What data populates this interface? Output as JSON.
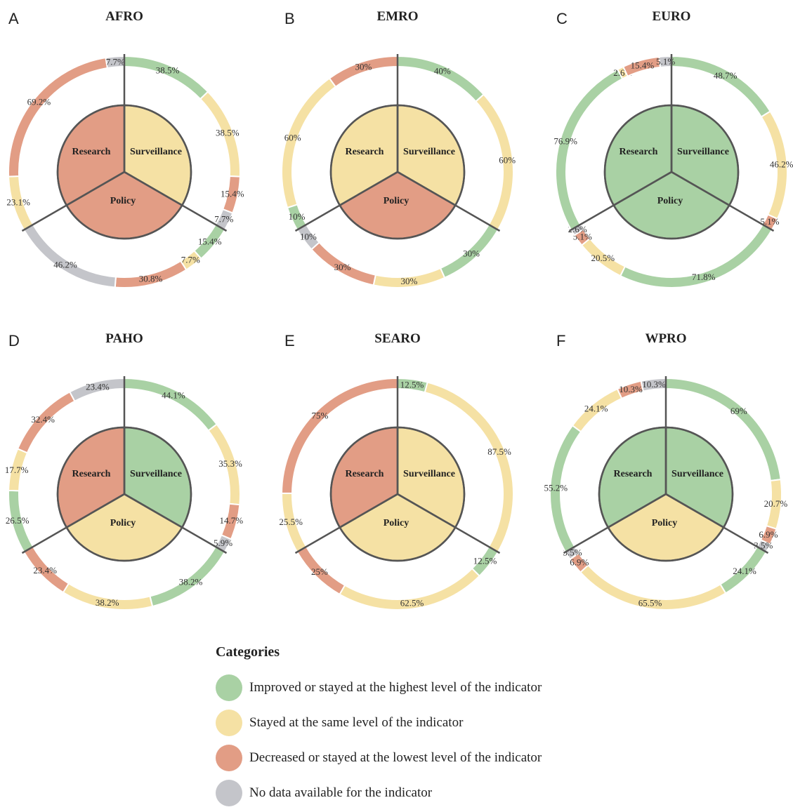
{
  "colors": {
    "improved": "#a9d1a4",
    "same": "#f5e1a4",
    "decreased": "#e29d85",
    "nodata": "#c4c5ca"
  },
  "legend": {
    "title": "Categories",
    "items": [
      {
        "key": "improved",
        "label": "Improved or stayed at the highest level of the indicator"
      },
      {
        "key": "same",
        "label": "Stayed at the same level of the indicator"
      },
      {
        "key": "decreased",
        "label": "Decreased or stayed at the lowest level of the indicator"
      },
      {
        "key": "nodata",
        "label": "No data available for the indicator"
      }
    ]
  },
  "chart_data": [
    {
      "type": "donut",
      "panel": "A",
      "title": "AFRO",
      "sections": [
        "Surveillance",
        "Policy",
        "Research"
      ],
      "inner": {
        "Surveillance": "same",
        "Policy": "decreased",
        "Research": "decreased"
      },
      "outer": {
        "Surveillance": [
          {
            "cat": "improved",
            "value": 38.5,
            "label": "38.5%"
          },
          {
            "cat": "same",
            "value": 38.5,
            "label": "38.5%"
          },
          {
            "cat": "decreased",
            "value": 15.4,
            "label": "15.4%"
          },
          {
            "cat": "nodata",
            "value": 7.7,
            "label": "7.7%"
          }
        ],
        "Policy": [
          {
            "cat": "improved",
            "value": 15.4,
            "label": "15.4%"
          },
          {
            "cat": "same",
            "value": 7.7,
            "label": "7.7%"
          },
          {
            "cat": "decreased",
            "value": 30.8,
            "label": "30.8%"
          },
          {
            "cat": "nodata",
            "value": 46.2,
            "label": "46.2%"
          }
        ],
        "Research": [
          {
            "cat": "same",
            "value": 23.1,
            "label": "23.1%"
          },
          {
            "cat": "decreased",
            "value": 69.2,
            "label": "69.2%"
          },
          {
            "cat": "nodata",
            "value": 7.7,
            "label": "7.7%"
          }
        ]
      }
    },
    {
      "type": "donut",
      "panel": "B",
      "title": "EMRO",
      "sections": [
        "Surveillance",
        "Policy",
        "Research"
      ],
      "inner": {
        "Surveillance": "same",
        "Policy": "decreased",
        "Research": "same"
      },
      "outer": {
        "Surveillance": [
          {
            "cat": "improved",
            "value": 40,
            "label": "40%"
          },
          {
            "cat": "same",
            "value": 60,
            "label": "60%"
          }
        ],
        "Policy": [
          {
            "cat": "improved",
            "value": 30,
            "label": "30%"
          },
          {
            "cat": "same",
            "value": 30,
            "label": "30%"
          },
          {
            "cat": "decreased",
            "value": 30,
            "label": "30%"
          },
          {
            "cat": "nodata",
            "value": 10,
            "label": "10%"
          }
        ],
        "Research": [
          {
            "cat": "improved",
            "value": 10,
            "label": "10%"
          },
          {
            "cat": "same",
            "value": 60,
            "label": "60%"
          },
          {
            "cat": "decreased",
            "value": 30,
            "label": "30%"
          }
        ]
      }
    },
    {
      "type": "donut",
      "panel": "C",
      "title": "EURO",
      "sections": [
        "Surveillance",
        "Policy",
        "Research"
      ],
      "inner": {
        "Surveillance": "improved",
        "Policy": "improved",
        "Research": "improved"
      },
      "outer": {
        "Surveillance": [
          {
            "cat": "improved",
            "value": 48.7,
            "label": "48.7%"
          },
          {
            "cat": "same",
            "value": 46.2,
            "label": "46.2%"
          },
          {
            "cat": "decreased",
            "value": 5.1,
            "label": "5.1%"
          }
        ],
        "Policy": [
          {
            "cat": "improved",
            "value": 71.8,
            "label": "71.8%"
          },
          {
            "cat": "same",
            "value": 20.5,
            "label": "20.5%"
          },
          {
            "cat": "decreased",
            "value": 5.1,
            "label": "5.1%"
          },
          {
            "cat": "nodata",
            "value": 2.6,
            "label": "2.6%"
          }
        ],
        "Research": [
          {
            "cat": "improved",
            "value": 76.9,
            "label": "76.9%"
          },
          {
            "cat": "same",
            "value": 2.6,
            "label": "2.6%"
          },
          {
            "cat": "decreased",
            "value": 15.4,
            "label": "15.4%"
          },
          {
            "cat": "nodata",
            "value": 5.1,
            "label": "5.1%"
          }
        ]
      }
    },
    {
      "type": "donut",
      "panel": "D",
      "title": "PAHO",
      "sections": [
        "Surveillance",
        "Policy",
        "Research"
      ],
      "inner": {
        "Surveillance": "improved",
        "Policy": "same",
        "Research": "decreased"
      },
      "outer": {
        "Surveillance": [
          {
            "cat": "improved",
            "value": 44.1,
            "label": "44.1%"
          },
          {
            "cat": "same",
            "value": 35.3,
            "label": "35.3%"
          },
          {
            "cat": "decreased",
            "value": 14.7,
            "label": "14.7%"
          },
          {
            "cat": "nodata",
            "value": 5.9,
            "label": "5.9%"
          }
        ],
        "Policy": [
          {
            "cat": "improved",
            "value": 38.2,
            "label": "38.2%"
          },
          {
            "cat": "same",
            "value": 38.2,
            "label": "38.2%"
          },
          {
            "cat": "decreased",
            "value": 23.4,
            "label": "23.4%"
          }
        ],
        "Research": [
          {
            "cat": "improved",
            "value": 26.5,
            "label": "26.5%"
          },
          {
            "cat": "same",
            "value": 17.7,
            "label": "17.7%"
          },
          {
            "cat": "decreased",
            "value": 32.4,
            "label": "32.4%"
          },
          {
            "cat": "nodata",
            "value": 23.4,
            "label": "23.4%"
          }
        ]
      }
    },
    {
      "type": "donut",
      "panel": "E",
      "title": "SEARO",
      "sections": [
        "Surveillance",
        "Policy",
        "Research"
      ],
      "inner": {
        "Surveillance": "same",
        "Policy": "same",
        "Research": "decreased"
      },
      "outer": {
        "Surveillance": [
          {
            "cat": "improved",
            "value": 12.5,
            "label": "12.5%"
          },
          {
            "cat": "same",
            "value": 87.5,
            "label": "87.5%"
          }
        ],
        "Policy": [
          {
            "cat": "improved",
            "value": 12.5,
            "label": "12.5%"
          },
          {
            "cat": "same",
            "value": 62.5,
            "label": "62.5%"
          },
          {
            "cat": "decreased",
            "value": 25,
            "label": "25%"
          }
        ],
        "Research": [
          {
            "cat": "same",
            "value": 25.5,
            "label": "25.5%"
          },
          {
            "cat": "decreased",
            "value": 75,
            "label": "75%"
          }
        ]
      }
    },
    {
      "type": "donut",
      "panel": "F",
      "title": "WPRO",
      "sections": [
        "Surveillance",
        "Policy",
        "Research"
      ],
      "inner": {
        "Surveillance": "improved",
        "Policy": "same",
        "Research": "improved"
      },
      "outer": {
        "Surveillance": [
          {
            "cat": "improved",
            "value": 69,
            "label": "69%"
          },
          {
            "cat": "same",
            "value": 20.7,
            "label": "20.7%"
          },
          {
            "cat": "decreased",
            "value": 6.9,
            "label": "6.9%"
          },
          {
            "cat": "nodata",
            "value": 3.5,
            "label": "3.5%"
          }
        ],
        "Policy": [
          {
            "cat": "improved",
            "value": 24.1,
            "label": "24.1%"
          },
          {
            "cat": "same",
            "value": 65.5,
            "label": "65.5%"
          },
          {
            "cat": "decreased",
            "value": 6.9,
            "label": "6.9%"
          },
          {
            "cat": "nodata",
            "value": 3.5,
            "label": "3.5%"
          }
        ],
        "Research": [
          {
            "cat": "improved",
            "value": 55.2,
            "label": "55.2%"
          },
          {
            "cat": "same",
            "value": 24.1,
            "label": "24.1%"
          },
          {
            "cat": "decreased",
            "value": 10.3,
            "label": "10.3%"
          },
          {
            "cat": "nodata",
            "value": 10.3,
            "label": "10.3%"
          }
        ]
      }
    }
  ]
}
